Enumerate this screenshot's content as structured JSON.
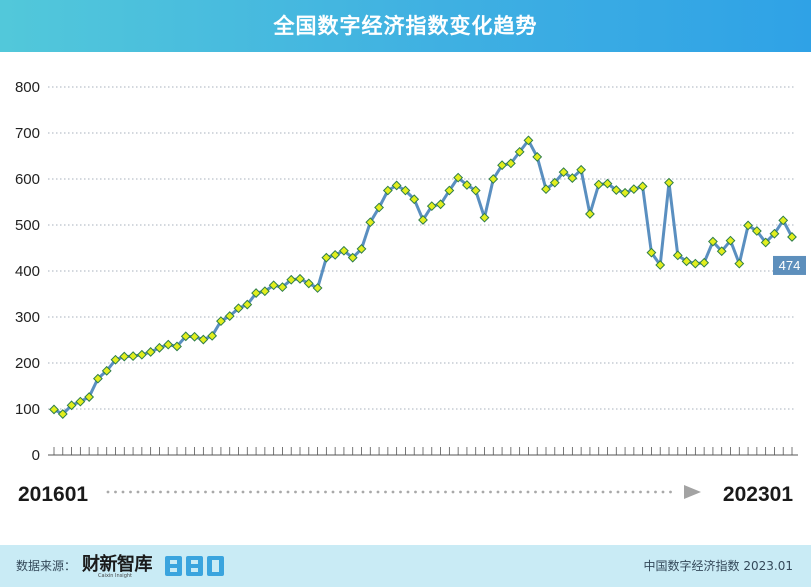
{
  "chart_data": {
    "type": "line",
    "title": "全国数字经济指数变化趋势",
    "xlabel": "",
    "ylabel": "",
    "ylim": [
      0,
      800
    ],
    "yticks": [
      0,
      100,
      200,
      300,
      400,
      500,
      600,
      700,
      800
    ],
    "x_start_label": "201601",
    "x_end_label": "202301",
    "last_value_label": "474",
    "grid": true,
    "colors": {
      "line": "#5a8fc0",
      "marker_fill": "#e2ee1d",
      "marker_edge": "#2e7d4a",
      "label_bg": "#5d8fbc"
    },
    "series": [
      {
        "values": [
          99,
          89,
          108,
          116,
          126,
          166,
          183,
          207,
          214,
          215,
          218,
          224,
          233,
          240,
          236,
          258,
          257,
          251,
          259,
          291,
          302,
          319,
          327,
          352,
          356,
          369,
          365,
          381,
          383,
          373,
          363,
          429,
          435,
          444,
          429,
          448,
          506,
          538,
          575,
          586,
          575,
          556,
          511,
          541,
          545,
          575,
          603,
          587,
          575,
          516,
          600,
          630,
          634,
          659,
          684,
          648,
          578,
          592,
          615,
          602,
          620,
          524,
          588,
          590,
          576,
          570,
          578,
          584,
          440,
          413,
          592,
          434,
          421,
          416,
          418,
          464,
          443,
          466,
          416,
          499,
          487,
          462,
          481,
          510,
          474
        ]
      }
    ]
  },
  "footer": {
    "source_label": "数据来源：",
    "brand_name": "财新智库",
    "brand_sub": "Caixin Insight",
    "bbd_logo": "BBD",
    "note": "中国数字经济指数 2023.01"
  }
}
